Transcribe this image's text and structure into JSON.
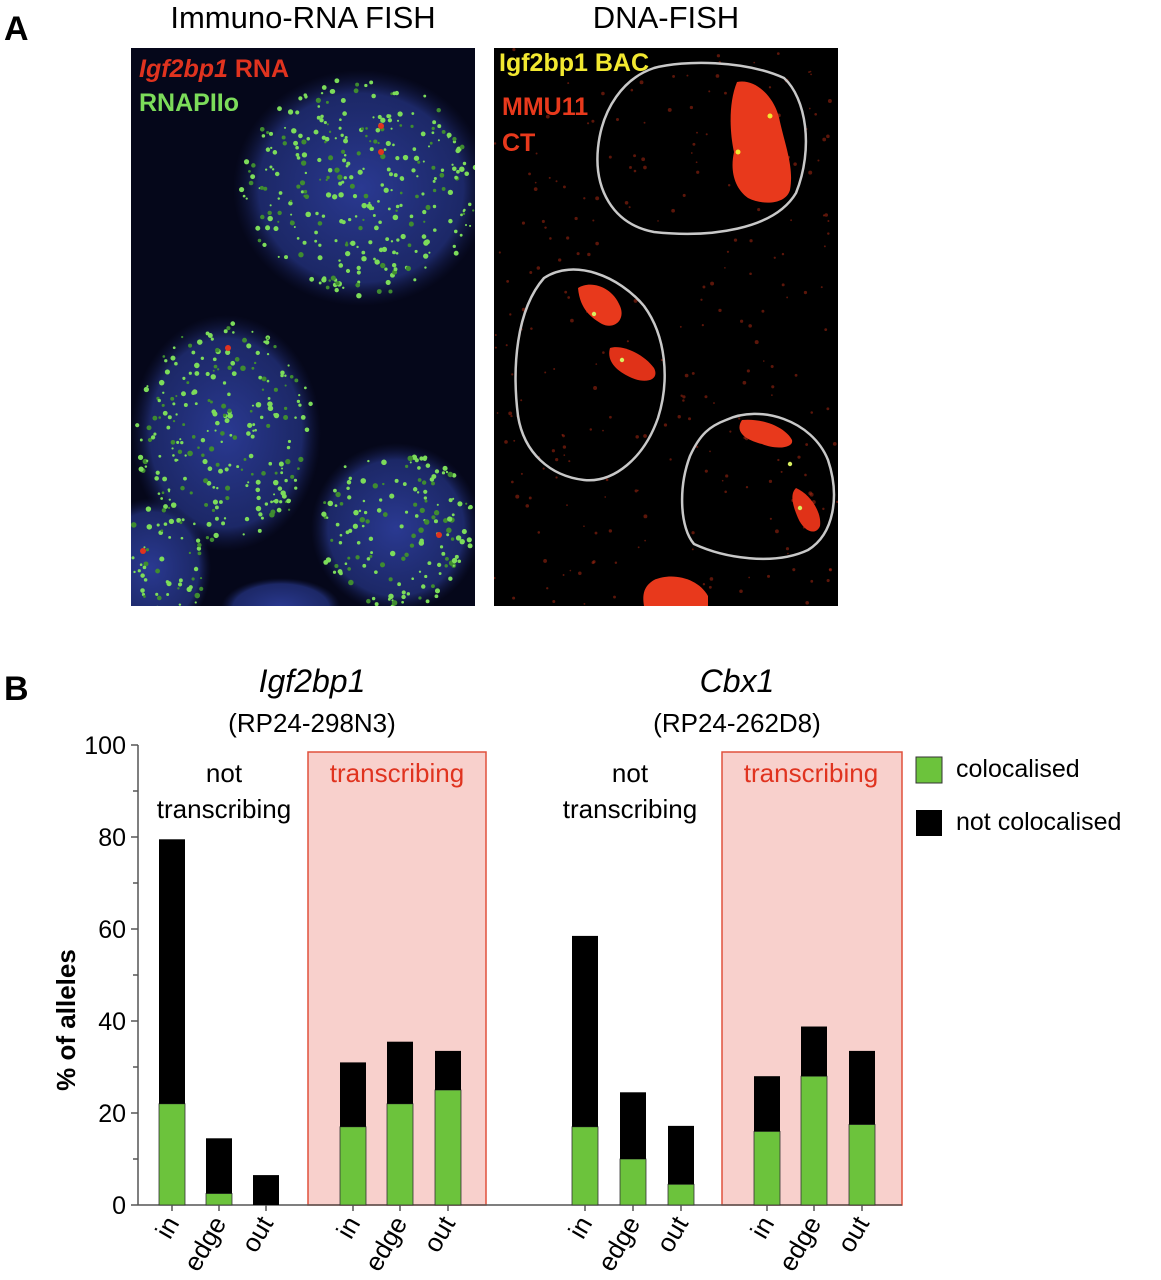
{
  "panel_a": {
    "letter": "A",
    "left_title": "Immuno-RNA FISH",
    "right_title": "DNA-FISH",
    "left_labels": {
      "gene_italic": "Igf2bp1",
      "rna": " RNA",
      "rnapii": "RNAPIIo"
    },
    "right_labels": {
      "bac": "Igf2bp1 BAC",
      "mmu": "MMU11",
      "ct": "CT"
    },
    "colors": {
      "nucleus_blue": "#2a3a8c",
      "rnapii_green": "#7cdc5a",
      "rna_red": "#e0331f",
      "ct_red": "#e83a1c",
      "bac_yellow": "#f2e830",
      "outline": "#c8c8c8"
    }
  },
  "panel_b": {
    "letter": "B",
    "gene1": {
      "name": "Igf2bp1",
      "bac": "(RP24-298N3)"
    },
    "gene2": {
      "name": "Cbx1",
      "bac": "(RP24-262D8)"
    },
    "group_labels": {
      "not_line1": "not",
      "not_line2": "transcribing",
      "transcribing": "transcribing"
    },
    "legend": {
      "colocalised": "colocalised",
      "not_colocalised": "not colocalised"
    },
    "colors": {
      "green": "#6cc33c",
      "black": "#000000",
      "shade": "#f8d0cc",
      "shade_border": "#e0503c",
      "label_red": "#e0331f"
    }
  },
  "chart_data": {
    "type": "bar",
    "stacked": true,
    "ylabel": "% of alleles",
    "ylim": [
      0,
      100
    ],
    "yticks": [
      0,
      20,
      40,
      60,
      80,
      100
    ],
    "categories": [
      "in",
      "edge",
      "out",
      "in",
      "edge",
      "out",
      "in",
      "edge",
      "out",
      "in",
      "edge",
      "out"
    ],
    "groups": [
      "Igf2bp1 not transcribing",
      "Igf2bp1 transcribing",
      "Cbx1 not transcribing",
      "Cbx1 transcribing"
    ],
    "series": [
      {
        "name": "colocalised",
        "values": [
          22,
          2.5,
          0,
          17,
          22,
          25,
          17,
          10,
          4.5,
          16,
          28,
          17.5
        ]
      },
      {
        "name": "not colocalised",
        "values": [
          57.5,
          12,
          6.5,
          14,
          13.5,
          8.5,
          41.5,
          14.5,
          12.7,
          12,
          10.8,
          16
        ]
      }
    ],
    "totals": [
      79.5,
      14.5,
      6.5,
      31,
      35.5,
      33.5,
      58.5,
      24.5,
      17.2,
      28,
      38.8,
      33.5
    ]
  }
}
